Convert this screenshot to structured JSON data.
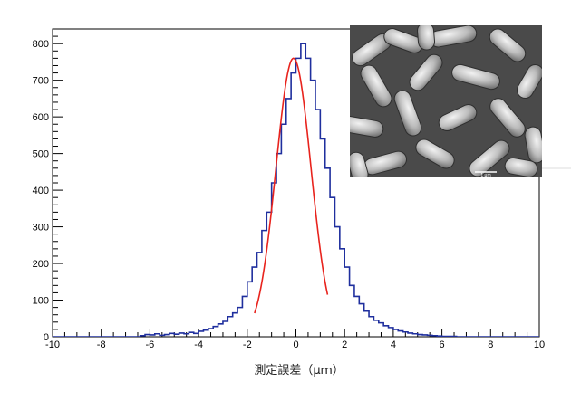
{
  "chart_data": {
    "type": "histogram",
    "title": "",
    "xlabel": "測定誤差（μｍ）",
    "ylabel": "",
    "xlim": [
      -10,
      10
    ],
    "ylim": [
      0,
      840
    ],
    "x_ticks": [
      -10,
      -8,
      -6,
      -4,
      -2,
      0,
      2,
      4,
      6,
      8,
      10
    ],
    "x_tick_labels": [
      "-10",
      "-8",
      "-6",
      "-4",
      "-2",
      "0",
      "2",
      "4",
      "6",
      "8",
      "10"
    ],
    "y_ticks": [
      0,
      100,
      200,
      300,
      400,
      500,
      600,
      700,
      800
    ],
    "y_tick_labels": [
      "0",
      "100",
      "200",
      "300",
      "400",
      "500",
      "600",
      "700",
      "800"
    ],
    "grid": false,
    "bin_width": 0.2,
    "series": [
      {
        "kind": "step-histogram",
        "color": "#1f2f9e",
        "bins_from": -6.4,
        "values": [
          3,
          6,
          5,
          8,
          4,
          6,
          9,
          7,
          10,
          8,
          12,
          9,
          15,
          18,
          22,
          28,
          35,
          42,
          55,
          65,
          80,
          110,
          150,
          190,
          230,
          290,
          340,
          420,
          500,
          580,
          650,
          720,
          760,
          800,
          760,
          700,
          620,
          540,
          460,
          380,
          300,
          240,
          190,
          140,
          110,
          90,
          70,
          55,
          45,
          38,
          30,
          25,
          20,
          16,
          13,
          10,
          8,
          6,
          5,
          4,
          3,
          2,
          1,
          1,
          1
        ]
      },
      {
        "kind": "fit-curve",
        "color": "#e8231d",
        "model": "gaussian",
        "amplitude": 760,
        "mean": -0.1,
        "sigma": 0.72,
        "x_range": [
          -1.7,
          1.3
        ]
      }
    ],
    "inset": {
      "kind": "sem-micrograph",
      "description_icon": "rod-shaped-bacteria-image",
      "scale_bar_label": "1 μm"
    }
  }
}
